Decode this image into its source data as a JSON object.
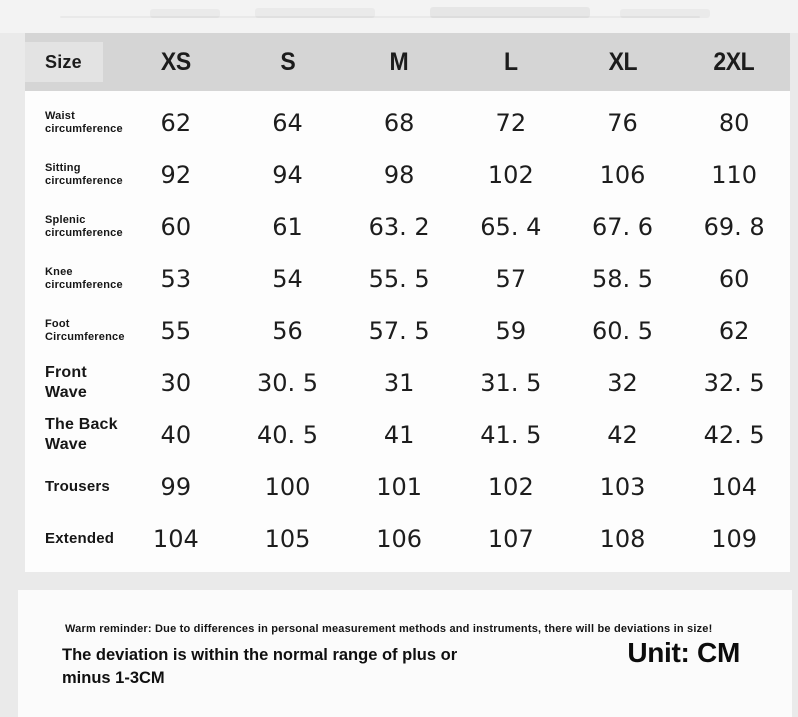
{
  "colors": {
    "page_bg": "#eaeaea",
    "card_bg": "#fdfdfd",
    "header_bg": "#d5d5d5",
    "size_cell_bg": "#e3e3e3",
    "text": "#161616"
  },
  "table": {
    "header": {
      "size_label": "Size",
      "columns": [
        "XS",
        "S",
        "M",
        "L",
        "XL",
        "2XL"
      ]
    },
    "rows": [
      {
        "label_lines": [
          "Waist",
          "circumference"
        ],
        "label_size": "small",
        "values": [
          "62",
          "64",
          "68",
          "72",
          "76",
          "80"
        ]
      },
      {
        "label_lines": [
          "Sitting",
          "circumference"
        ],
        "label_size": "small",
        "values": [
          "92",
          "94",
          "98",
          "102",
          "106",
          "110"
        ]
      },
      {
        "label_lines": [
          "Splenic",
          "circumference"
        ],
        "label_size": "small",
        "values": [
          "60",
          "61",
          "63. 2",
          "65. 4",
          "67. 6",
          "69. 8"
        ]
      },
      {
        "label_lines": [
          "Knee",
          "circumference"
        ],
        "label_size": "small",
        "values": [
          "53",
          "54",
          "55. 5",
          "57",
          "58. 5",
          "60"
        ]
      },
      {
        "label_lines": [
          "Foot",
          "Circumference"
        ],
        "label_size": "small",
        "values": [
          "55",
          "56",
          "57. 5",
          "59",
          "60. 5",
          "62"
        ]
      },
      {
        "label_lines": [
          "Front",
          "Wave"
        ],
        "label_size": "large",
        "values": [
          "30",
          "30. 5",
          "31",
          "31. 5",
          "32",
          "32. 5"
        ]
      },
      {
        "label_lines": [
          "The Back",
          "Wave"
        ],
        "label_size": "large",
        "values": [
          "40",
          "40. 5",
          "41",
          "41. 5",
          "42",
          "42. 5"
        ]
      },
      {
        "label_lines": [
          "Trousers"
        ],
        "label_size": "medium",
        "values": [
          "99",
          "100",
          "101",
          "102",
          "103",
          "104"
        ]
      },
      {
        "label_lines": [
          "Extended"
        ],
        "label_size": "medium",
        "values": [
          "104",
          "105",
          "106",
          "107",
          "108",
          "109"
        ]
      }
    ]
  },
  "footer": {
    "warm_reminder": "Warm reminder: Due to differences in personal measurement methods and instruments, there will be deviations in size!",
    "deviation_note": "The deviation is within the normal range of plus or minus 1-3CM",
    "unit": "Unit: CM"
  }
}
